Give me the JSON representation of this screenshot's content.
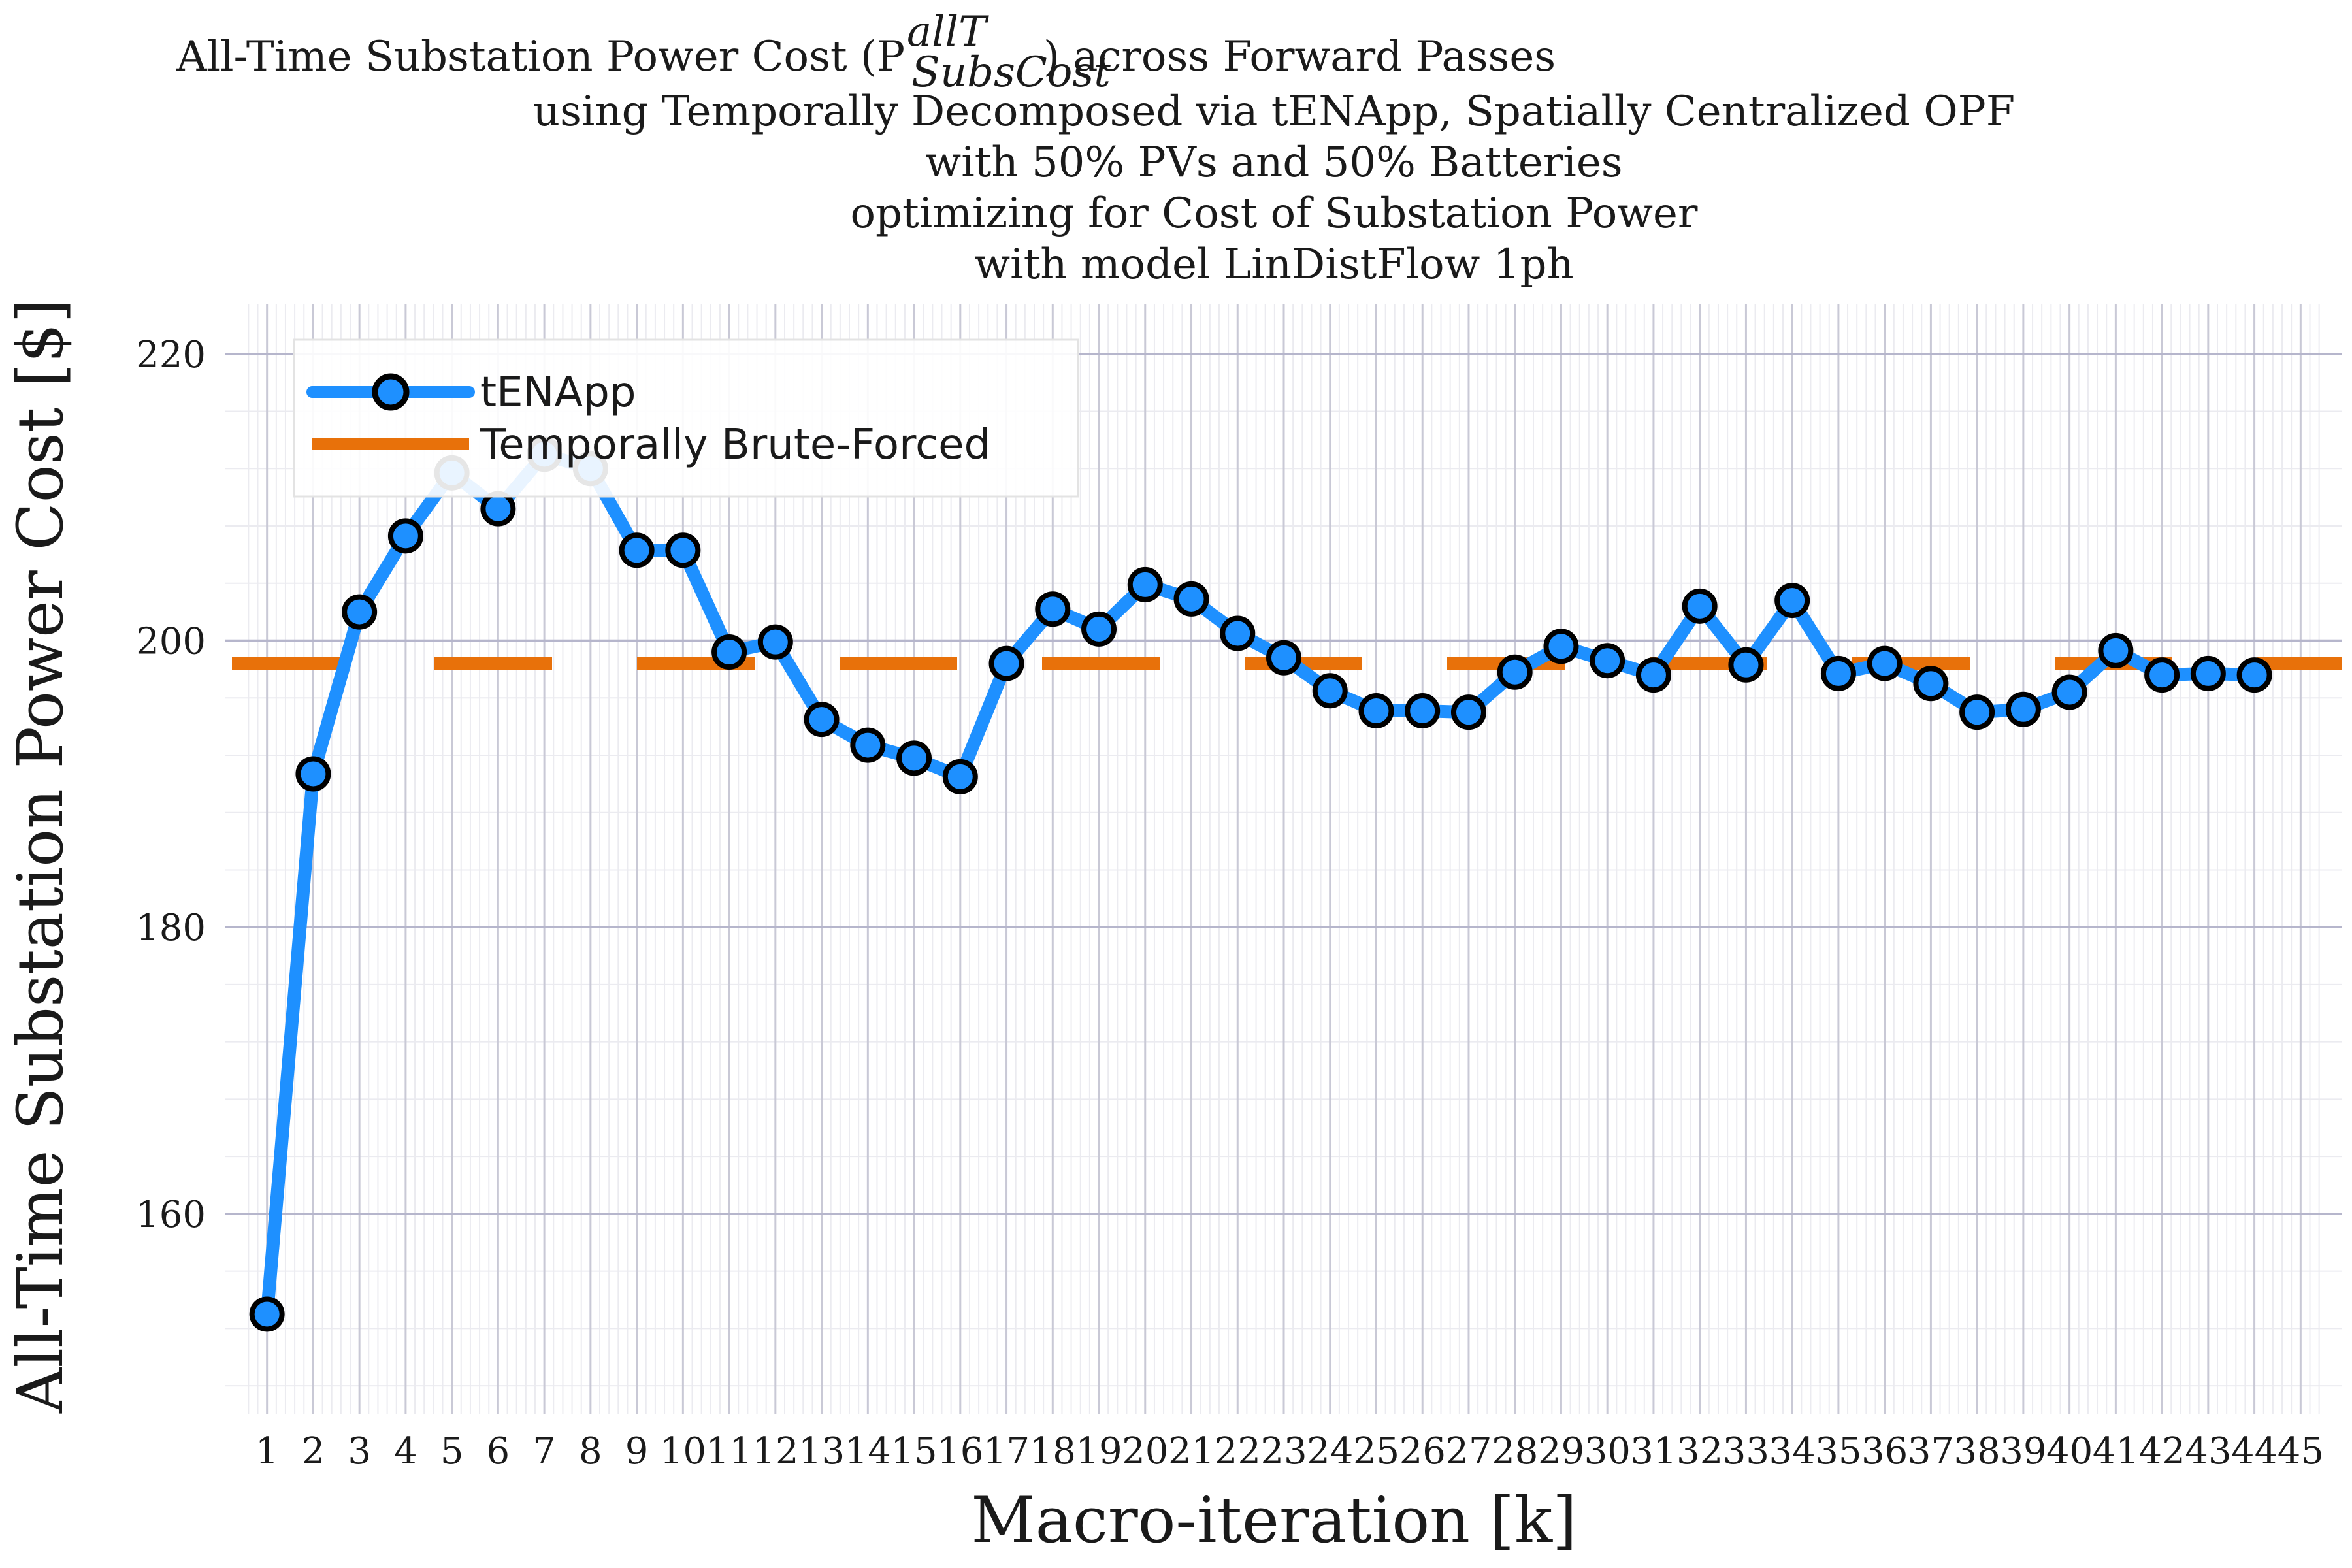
{
  "chart_data": {
    "type": "line",
    "title_lines": [
      "All-Time Substation Power Cost (P",
      "using Temporally Decomposed via tENApp, Spatially Centralized OPF",
      "with 50% PVs and 50% Batteries",
      "optimizing for Cost of Substation Power",
      "with model LinDistFlow 1ph"
    ],
    "title_symbol": {
      "superscript": "allT",
      "subscript": "SubsCost",
      "suffix": ") across Forward Passes"
    },
    "xlabel": "Macro-iteration [k]",
    "ylabel": "All-Time Substation Power Cost [$]",
    "x_ticks": [
      "1",
      "2",
      "3",
      "4",
      "5",
      "6",
      "7",
      "8",
      "9",
      "10",
      "11",
      "12",
      "13",
      "14",
      "15",
      "16",
      "17",
      "18",
      "19",
      "20",
      "21",
      "22",
      "23",
      "24",
      "25",
      "26",
      "27",
      "28",
      "29",
      "30",
      "31",
      "32",
      "33",
      "34",
      "35",
      "36",
      "37",
      "38",
      "39",
      "40",
      "41",
      "42",
      "43",
      "44",
      "45"
    ],
    "y_ticks": [
      160,
      180,
      200,
      220
    ],
    "xlim": [
      0.1,
      45.9
    ],
    "ylim": [
      146,
      223.5
    ],
    "grid": true,
    "legend_position": "top-left",
    "series": [
      {
        "name": "tENApp",
        "color": "#1e90ff",
        "marker": "circle",
        "x": [
          1,
          2,
          3,
          4,
          5,
          6,
          7,
          8,
          9,
          10,
          11,
          12,
          13,
          14,
          15,
          16,
          17,
          18,
          19,
          20,
          21,
          22,
          23,
          24,
          25,
          26,
          27,
          28,
          29,
          30,
          31,
          32,
          33,
          34,
          35,
          36,
          37,
          38,
          39,
          40,
          41,
          42,
          43,
          44
        ],
        "values": [
          153.0,
          190.7,
          202.0,
          207.3,
          211.7,
          209.2,
          213.0,
          212.0,
          206.3,
          206.3,
          199.2,
          199.9,
          194.5,
          192.7,
          191.8,
          190.5,
          198.4,
          202.2,
          200.8,
          203.9,
          202.9,
          200.5,
          198.8,
          196.5,
          195.1,
          195.1,
          195.0,
          197.8,
          199.6,
          198.6,
          197.6,
          202.4,
          198.3,
          202.8,
          197.7,
          198.4,
          197.0,
          195.0,
          195.2,
          196.4,
          199.3,
          197.6,
          197.7,
          197.6
        ]
      },
      {
        "name": "Temporally Brute-Forced",
        "color": "#e8710a",
        "style": "dashed",
        "values": [
          198.4
        ]
      }
    ]
  }
}
